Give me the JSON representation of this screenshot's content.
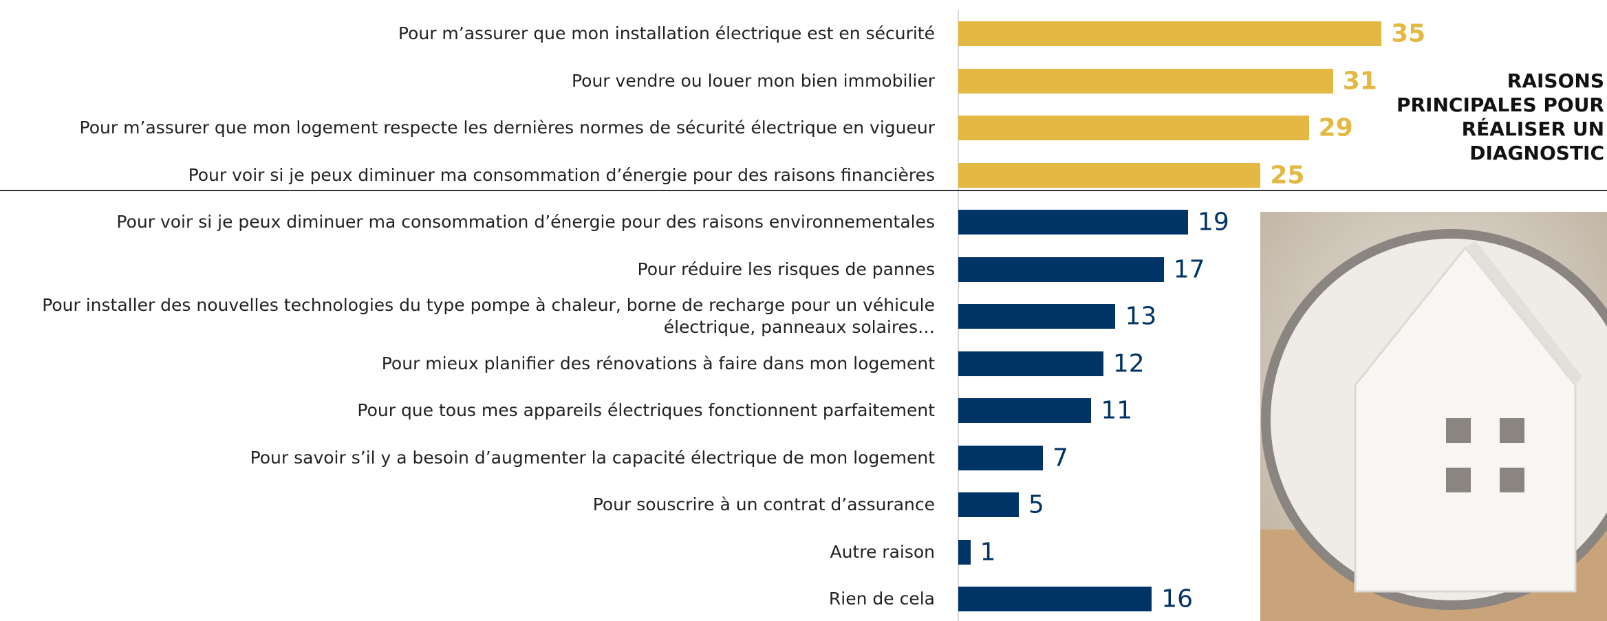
{
  "chart_data": {
    "type": "bar",
    "orientation": "horizontal",
    "title": "RAISONS PRINCIPALES POUR RÉALISER UN DIAGNOSTIC",
    "categories": [
      "Pour m’assurer que mon installation électrique est en sécurité",
      "Pour vendre ou louer mon bien immobilier",
      "Pour m’assurer que mon logement respecte les dernières normes de sécurité électrique en vigueur",
      "Pour voir si je peux diminuer ma consommation d’énergie pour des raisons financières",
      "Pour voir si je peux diminuer ma consommation d’énergie pour des raisons environnementales",
      "Pour réduire les risques de pannes",
      "Pour installer des nouvelles technologies du type pompe à chaleur, borne de recharge pour un véhicule\nélectrique, panneaux solaires…",
      "Pour mieux planifier des rénovations à faire dans mon logement",
      "Pour que tous mes appareils électriques fonctionnent parfaitement",
      "Pour savoir s’il y a besoin d’augmenter la capacité électrique de mon logement",
      "Pour souscrire à un contrat d’assurance",
      "Autre raison",
      "Rien de cela"
    ],
    "values": [
      35,
      31,
      29,
      25,
      19,
      17,
      13,
      12,
      11,
      7,
      5,
      1,
      16
    ],
    "colors": [
      "#e3b944",
      "#e3b944",
      "#e3b944",
      "#e3b944",
      "#003366",
      "#003366",
      "#003366",
      "#003366",
      "#003366",
      "#003366",
      "#003366",
      "#003366",
      "#003366"
    ],
    "xlim": [
      0,
      40
    ]
  }
}
